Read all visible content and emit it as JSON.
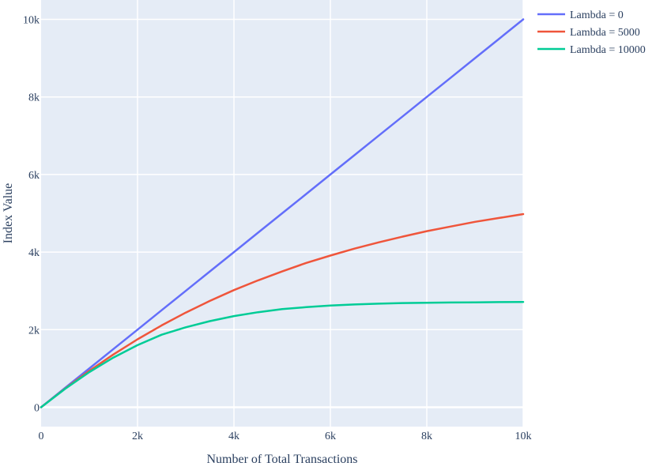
{
  "colors": {
    "plot_bg": "#e5ecf6",
    "grid": "#ffffff",
    "text": "#2a3f5f"
  },
  "chart_data": {
    "type": "line",
    "title": "",
    "xlabel": "Number of Total Transactions",
    "ylabel": "Index Value",
    "xlim": [
      0,
      10000
    ],
    "ylim": [
      -500,
      10500
    ],
    "grid": true,
    "legend_position": "top-right",
    "x_ticks": [
      {
        "value": 0,
        "label": "0"
      },
      {
        "value": 2000,
        "label": "2k"
      },
      {
        "value": 4000,
        "label": "4k"
      },
      {
        "value": 6000,
        "label": "6k"
      },
      {
        "value": 8000,
        "label": "8k"
      },
      {
        "value": 10000,
        "label": "10k"
      }
    ],
    "y_ticks": [
      {
        "value": 0,
        "label": "0"
      },
      {
        "value": 2000,
        "label": "2k"
      },
      {
        "value": 4000,
        "label": "4k"
      },
      {
        "value": 6000,
        "label": "6k"
      },
      {
        "value": 8000,
        "label": "8k"
      },
      {
        "value": 10000,
        "label": "10k"
      }
    ],
    "x": [
      0,
      500,
      1000,
      1500,
      2000,
      2500,
      3000,
      3500,
      4000,
      4500,
      5000,
      5500,
      6000,
      6500,
      7000,
      7500,
      8000,
      8500,
      9000,
      9500,
      10000
    ],
    "series": [
      {
        "name": "Lambda = 0",
        "color": "#636efa",
        "values": [
          0,
          500,
          1000,
          1500,
          2000,
          2500,
          3000,
          3500,
          4000,
          4500,
          5000,
          5500,
          6000,
          6500,
          7000,
          7500,
          8000,
          8500,
          9000,
          9500,
          10000
        ]
      },
      {
        "name": "Lambda = 5000",
        "color": "#ef553b",
        "values": [
          0,
          484,
          938,
          1360,
          1750,
          2110,
          2440,
          2740,
          3020,
          3270,
          3500,
          3720,
          3910,
          4090,
          4250,
          4400,
          4540,
          4660,
          4780,
          4880,
          4980
        ]
      },
      {
        "name": "Lambda = 10000",
        "color": "#00cc96",
        "values": [
          0,
          476,
          905,
          1280,
          1600,
          1870,
          2060,
          2220,
          2350,
          2450,
          2530,
          2580,
          2620,
          2650,
          2670,
          2685,
          2695,
          2700,
          2705,
          2710,
          2715
        ]
      }
    ]
  }
}
